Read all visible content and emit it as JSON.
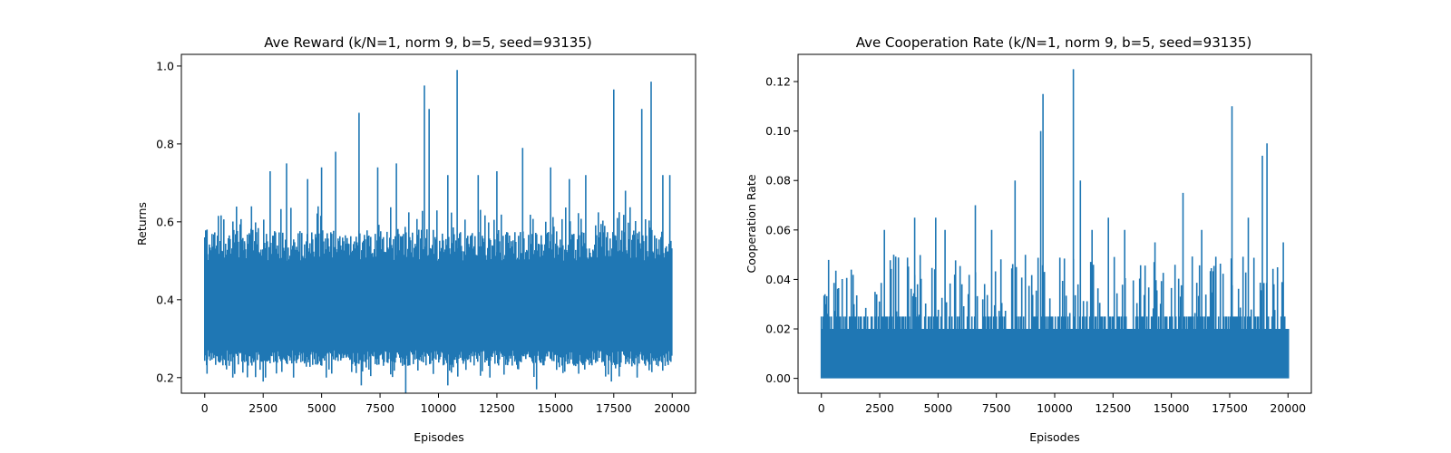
{
  "chart_data": [
    {
      "type": "line",
      "title": "Ave Reward (k/N=1, norm 9, b=5, seed=93135)",
      "xlabel": "Episodes",
      "ylabel": "Returns",
      "xlim": [
        -1000,
        21000
      ],
      "ylim": [
        0.16,
        1.03
      ],
      "xticks": [
        0,
        2500,
        5000,
        7500,
        10000,
        12500,
        15000,
        17500,
        20000
      ],
      "xtick_labels": [
        "0",
        "2500",
        "5000",
        "7500",
        "10000",
        "12500",
        "15000",
        "17500",
        "20000"
      ],
      "yticks": [
        0.2,
        0.4,
        0.6,
        0.8,
        1.0
      ],
      "ytick_labels": [
        "0.2",
        "0.4",
        "0.6",
        "0.8",
        "1.0"
      ],
      "grid": false,
      "series": [
        {
          "color": "#1f77b4",
          "episodes": 20000,
          "typical_band": [
            0.25,
            0.5
          ],
          "peaks": [
            [
              0,
              0.56
            ],
            [
              100,
              0.58
            ],
            [
              1700,
              0.55
            ],
            [
              2000,
              0.64
            ],
            [
              2800,
              0.73
            ],
            [
              3500,
              0.75
            ],
            [
              4400,
              0.71
            ],
            [
              5000,
              0.74
            ],
            [
              5600,
              0.78
            ],
            [
              6600,
              0.88
            ],
            [
              7400,
              0.74
            ],
            [
              8200,
              0.75
            ],
            [
              9400,
              0.95
            ],
            [
              9600,
              0.89
            ],
            [
              10400,
              0.72
            ],
            [
              10800,
              0.99
            ],
            [
              11700,
              0.72
            ],
            [
              12500,
              0.73
            ],
            [
              13600,
              0.79
            ],
            [
              14800,
              0.74
            ],
            [
              15600,
              0.71
            ],
            [
              16300,
              0.72
            ],
            [
              17500,
              0.94
            ],
            [
              18000,
              0.68
            ],
            [
              18700,
              0.89
            ],
            [
              19100,
              0.96
            ],
            [
              19600,
              0.72
            ],
            [
              19900,
              0.72
            ]
          ],
          "troughs": [
            [
              100,
              0.21
            ],
            [
              1200,
              0.2
            ],
            [
              2500,
              0.19
            ],
            [
              3800,
              0.2
            ],
            [
              5200,
              0.2
            ],
            [
              6700,
              0.18
            ],
            [
              8600,
              0.16
            ],
            [
              10400,
              0.18
            ],
            [
              12200,
              0.2
            ],
            [
              14200,
              0.17
            ],
            [
              16000,
              0.21
            ],
            [
              17400,
              0.19
            ],
            [
              18500,
              0.2
            ],
            [
              19700,
              0.23
            ]
          ]
        }
      ]
    },
    {
      "type": "line",
      "title": "Ave Cooperation Rate (k/N=1, norm 9, b=5, seed=93135)",
      "xlabel": "Episodes",
      "ylabel": "Cooperation Rate",
      "xlim": [
        -1000,
        21000
      ],
      "ylim": [
        -0.006,
        0.131
      ],
      "xticks": [
        0,
        2500,
        5000,
        7500,
        10000,
        12500,
        15000,
        17500,
        20000
      ],
      "xtick_labels": [
        "0",
        "2500",
        "5000",
        "7500",
        "10000",
        "12500",
        "15000",
        "17500",
        "20000"
      ],
      "yticks": [
        0.0,
        0.02,
        0.04,
        0.06,
        0.08,
        0.1,
        0.12
      ],
      "ytick_labels": [
        "0.00",
        "0.02",
        "0.04",
        "0.06",
        "0.08",
        "0.10",
        "0.12"
      ],
      "grid": false,
      "series": [
        {
          "color": "#1f77b4",
          "episodes": 20000,
          "typical_band": [
            0.0,
            0.025
          ],
          "peaks": [
            [
              0,
              0.02
            ],
            [
              200,
              0.03
            ],
            [
              1400,
              0.03
            ],
            [
              2300,
              0.035
            ],
            [
              2700,
              0.06
            ],
            [
              3100,
              0.05
            ],
            [
              4000,
              0.065
            ],
            [
              4900,
              0.065
            ],
            [
              5300,
              0.06
            ],
            [
              6600,
              0.07
            ],
            [
              7300,
              0.06
            ],
            [
              8300,
              0.08
            ],
            [
              9500,
              0.115
            ],
            [
              9400,
              0.1
            ],
            [
              10800,
              0.125
            ],
            [
              11100,
              0.08
            ],
            [
              11600,
              0.06
            ],
            [
              12300,
              0.065
            ],
            [
              13000,
              0.06
            ],
            [
              14300,
              0.055
            ],
            [
              15500,
              0.075
            ],
            [
              16300,
              0.06
            ],
            [
              17600,
              0.11
            ],
            [
              18300,
              0.065
            ],
            [
              18900,
              0.09
            ],
            [
              19100,
              0.095
            ],
            [
              19800,
              0.055
            ]
          ]
        }
      ]
    }
  ]
}
